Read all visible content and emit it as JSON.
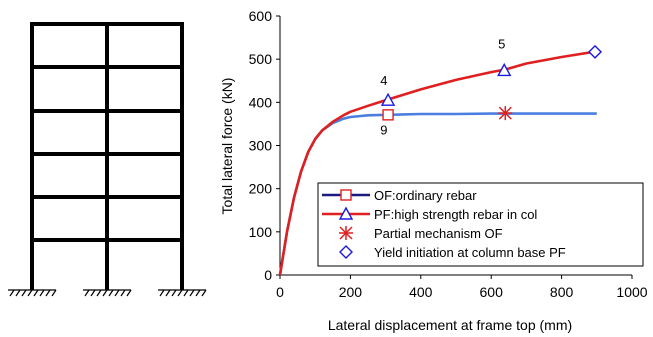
{
  "chart_data": {
    "type": "line",
    "xlabel": "Lateral displacement at frame top (mm)",
    "ylabel": "Total lateral force (kN)",
    "xlim": [
      0,
      1000
    ],
    "ylim": [
      0,
      600
    ],
    "x_ticks": [
      "0",
      "200",
      "400",
      "600",
      "800",
      "1000"
    ],
    "y_ticks": [
      "0",
      "100",
      "200",
      "300",
      "400",
      "500",
      "600"
    ],
    "grid": false,
    "legend_position": "lower-right",
    "series": [
      {
        "name": "OF:ordinary rebar",
        "color": "#4a7fe0",
        "marker": "square",
        "x": [
          0,
          20,
          40,
          60,
          80,
          100,
          120,
          150,
          180,
          200,
          250,
          300,
          350,
          400,
          500,
          600,
          700,
          800,
          900
        ],
        "y": [
          0,
          100,
          180,
          240,
          285,
          315,
          335,
          352,
          362,
          366,
          370,
          371,
          372,
          373,
          373,
          374,
          374,
          374,
          374
        ]
      },
      {
        "name": "PF:high strength rebar in col",
        "color": "#e02020",
        "marker": "triangle",
        "x": [
          0,
          20,
          40,
          60,
          80,
          100,
          120,
          150,
          180,
          200,
          250,
          300,
          400,
          500,
          600,
          640,
          700,
          800,
          900
        ],
        "y": [
          0,
          100,
          180,
          240,
          285,
          315,
          335,
          355,
          370,
          378,
          392,
          405,
          430,
          452,
          470,
          476,
          490,
          505,
          518
        ]
      }
    ],
    "points": [
      {
        "name": "Partial mechanism OF",
        "marker": "asterisk",
        "color": "#e02020",
        "x": 640,
        "y": 375
      },
      {
        "name": "Yield initiation at column base PF",
        "marker": "diamond",
        "color": "#1a1ae0",
        "x": 895,
        "y": 517
      }
    ],
    "series_markers": [
      {
        "series": "OF:ordinary rebar",
        "x": 307,
        "y": 371
      },
      {
        "series": "PF:high strength rebar in col",
        "x": 307,
        "y": 405
      },
      {
        "series": "PF:high strength rebar in col",
        "x": 637,
        "y": 474
      }
    ],
    "annotations": [
      {
        "text": "4",
        "x": 295,
        "y": 440
      },
      {
        "text": "5",
        "x": 630,
        "y": 525
      },
      {
        "text": "9",
        "x": 295,
        "y": 325
      }
    ]
  }
}
